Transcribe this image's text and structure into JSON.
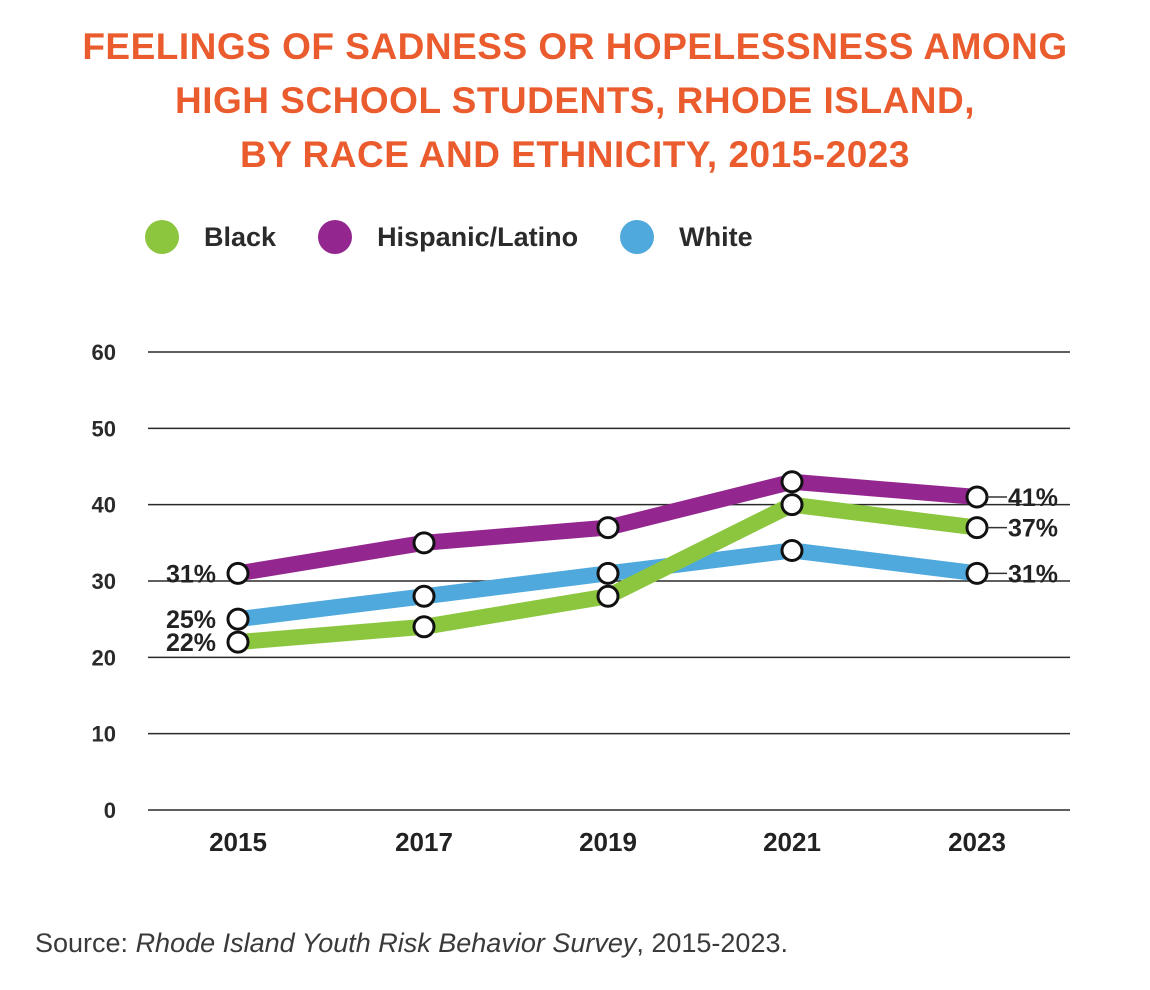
{
  "title_lines": [
    "FEELINGS OF SADNESS OR HOPELESSNESS AMONG",
    "HIGH SCHOOL STUDENTS, RHODE ISLAND,",
    "BY RACE AND ETHNICITY, 2015-2023"
  ],
  "source": {
    "prefix": "Source: ",
    "italic": "Rhode Island Youth Risk Behavior Survey",
    "suffix": ", 2015-2023."
  },
  "chart_data": {
    "type": "line",
    "x": [
      "2015",
      "2017",
      "2019",
      "2021",
      "2023"
    ],
    "ylim": [
      0,
      60
    ],
    "yticks": [
      0,
      10,
      20,
      30,
      40,
      50,
      60
    ],
    "grid": true,
    "legend_position": "top-left",
    "series": [
      {
        "name": "Black",
        "color": "#8cc63f",
        "values": [
          22,
          24,
          28,
          40,
          37
        ]
      },
      {
        "name": "Hispanic/Latino",
        "color": "#93278f",
        "values": [
          31,
          35,
          37,
          43,
          41
        ]
      },
      {
        "name": "White",
        "color": "#4fa9dc",
        "values": [
          25,
          28,
          31,
          34,
          31
        ]
      }
    ],
    "data_labels": [
      {
        "series": "Hispanic/Latino",
        "x": "2015",
        "text": "31%",
        "side": "left"
      },
      {
        "series": "White",
        "x": "2015",
        "text": "25%",
        "side": "left"
      },
      {
        "series": "Black",
        "x": "2015",
        "text": "22%",
        "side": "left"
      },
      {
        "series": "Hispanic/Latino",
        "x": "2023",
        "text": "41%",
        "side": "right"
      },
      {
        "series": "Black",
        "x": "2023",
        "text": "37%",
        "side": "right"
      },
      {
        "series": "White",
        "x": "2023",
        "text": "31%",
        "side": "right"
      }
    ]
  }
}
